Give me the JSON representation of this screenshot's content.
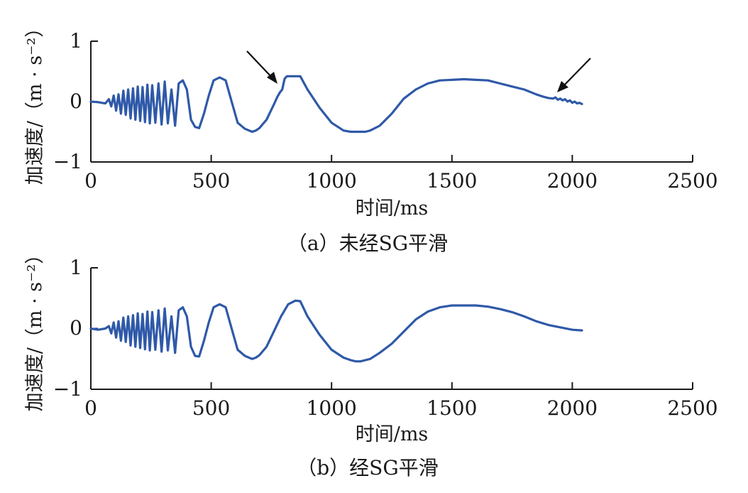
{
  "chart_data": [
    {
      "type": "line",
      "title": "",
      "caption": "（a）未经SG平滑",
      "xlabel": "时间/ms",
      "ylabel": "加速度/（m · s⁻²）",
      "xlim": [
        0,
        2500
      ],
      "ylim": [
        -1,
        1
      ],
      "xticks": [
        "0",
        "500",
        "1000",
        "1500",
        "2000",
        "2500"
      ],
      "yticks": [
        "−1",
        "0",
        "1"
      ],
      "grid": false,
      "line_color": "#2f59a8",
      "series": [
        {
          "x": [
            0,
            30,
            60,
            75,
            85,
            95,
            105,
            115,
            125,
            135,
            145,
            155,
            165,
            175,
            185,
            195,
            205,
            215,
            225,
            235,
            245,
            255,
            268,
            281,
            294,
            307,
            320,
            335,
            350,
            365,
            382,
            399,
            416,
            433,
            450,
            470,
            490,
            510,
            535,
            560,
            585,
            610,
            640,
            670,
            685,
            700,
            730,
            760,
            775,
            785,
            795,
            805,
            815,
            850,
            870,
            900,
            950,
            1000,
            1050,
            1080,
            1100,
            1120,
            1140,
            1160,
            1200,
            1250,
            1300,
            1350,
            1400,
            1450,
            1500,
            1550,
            1600,
            1650,
            1700,
            1750,
            1800,
            1850,
            1880,
            1900,
            1920,
            1930,
            1940,
            1950,
            1960,
            1970,
            1980,
            1990,
            2000,
            2010,
            2020,
            2030,
            2040
          ],
          "y": [
            0,
            -0.01,
            -0.03,
            0.04,
            -0.08,
            0.1,
            -0.15,
            0.12,
            -0.2,
            0.18,
            -0.22,
            0.2,
            -0.28,
            0.22,
            -0.3,
            0.25,
            -0.32,
            0.24,
            -0.34,
            0.28,
            -0.36,
            0.27,
            -0.35,
            0.3,
            -0.38,
            0.33,
            -0.36,
            0.2,
            -0.4,
            0.3,
            0.35,
            0.2,
            -0.3,
            -0.42,
            -0.44,
            -0.2,
            0.1,
            0.35,
            0.4,
            0.35,
            0.0,
            -0.35,
            -0.45,
            -0.5,
            -0.48,
            -0.44,
            -0.3,
            -0.05,
            0.08,
            0.15,
            0.2,
            0.38,
            0.42,
            0.42,
            0.42,
            0.2,
            -0.1,
            -0.35,
            -0.48,
            -0.5,
            -0.5,
            -0.5,
            -0.5,
            -0.48,
            -0.4,
            -0.2,
            0.05,
            0.2,
            0.3,
            0.35,
            0.36,
            0.37,
            0.36,
            0.35,
            0.3,
            0.25,
            0.2,
            0.12,
            0.08,
            0.06,
            0.05,
            0.07,
            0.03,
            0.05,
            0.02,
            0.04,
            0.0,
            0.02,
            -0.02,
            0.0,
            -0.03,
            -0.02,
            -0.04
          ]
        }
      ],
      "annotations": [
        "arrow",
        "arrow"
      ]
    },
    {
      "type": "line",
      "title": "",
      "caption": "（b）经SG平滑",
      "xlabel": "时间/ms",
      "ylabel": "加速度/（m · s⁻²）",
      "xlim": [
        0,
        2500
      ],
      "ylim": [
        -1,
        1
      ],
      "xticks": [
        "0",
        "500",
        "1000",
        "1500",
        "2000",
        "2500"
      ],
      "yticks": [
        "−1",
        "0",
        "1"
      ],
      "grid": false,
      "line_color": "#2f59a8",
      "series": [
        {
          "x": [
            0,
            30,
            60,
            75,
            85,
            95,
            105,
            115,
            125,
            135,
            145,
            155,
            165,
            175,
            185,
            195,
            205,
            215,
            225,
            235,
            245,
            255,
            268,
            281,
            294,
            307,
            320,
            335,
            350,
            365,
            382,
            399,
            416,
            433,
            450,
            470,
            490,
            510,
            535,
            560,
            585,
            610,
            640,
            670,
            685,
            700,
            730,
            760,
            790,
            820,
            850,
            870,
            900,
            950,
            1000,
            1050,
            1080,
            1100,
            1120,
            1140,
            1160,
            1200,
            1250,
            1300,
            1350,
            1400,
            1450,
            1500,
            1550,
            1600,
            1650,
            1700,
            1750,
            1800,
            1850,
            1900,
            1950,
            2000,
            2040
          ],
          "y": [
            0,
            -0.02,
            0.0,
            0.04,
            -0.08,
            0.1,
            -0.15,
            0.12,
            -0.2,
            0.18,
            -0.22,
            0.2,
            -0.28,
            0.22,
            -0.3,
            0.25,
            -0.32,
            0.24,
            -0.34,
            0.28,
            -0.36,
            0.27,
            -0.35,
            0.3,
            -0.38,
            0.33,
            -0.36,
            0.2,
            -0.4,
            0.3,
            0.35,
            0.2,
            -0.3,
            -0.45,
            -0.46,
            -0.2,
            0.1,
            0.35,
            0.4,
            0.35,
            0.0,
            -0.35,
            -0.45,
            -0.5,
            -0.48,
            -0.44,
            -0.3,
            -0.05,
            0.2,
            0.4,
            0.46,
            0.45,
            0.2,
            -0.1,
            -0.35,
            -0.48,
            -0.52,
            -0.54,
            -0.54,
            -0.52,
            -0.5,
            -0.4,
            -0.25,
            -0.05,
            0.15,
            0.28,
            0.35,
            0.38,
            0.38,
            0.38,
            0.36,
            0.32,
            0.27,
            0.2,
            0.12,
            0.06,
            0.02,
            -0.02,
            -0.03
          ]
        }
      ]
    }
  ]
}
